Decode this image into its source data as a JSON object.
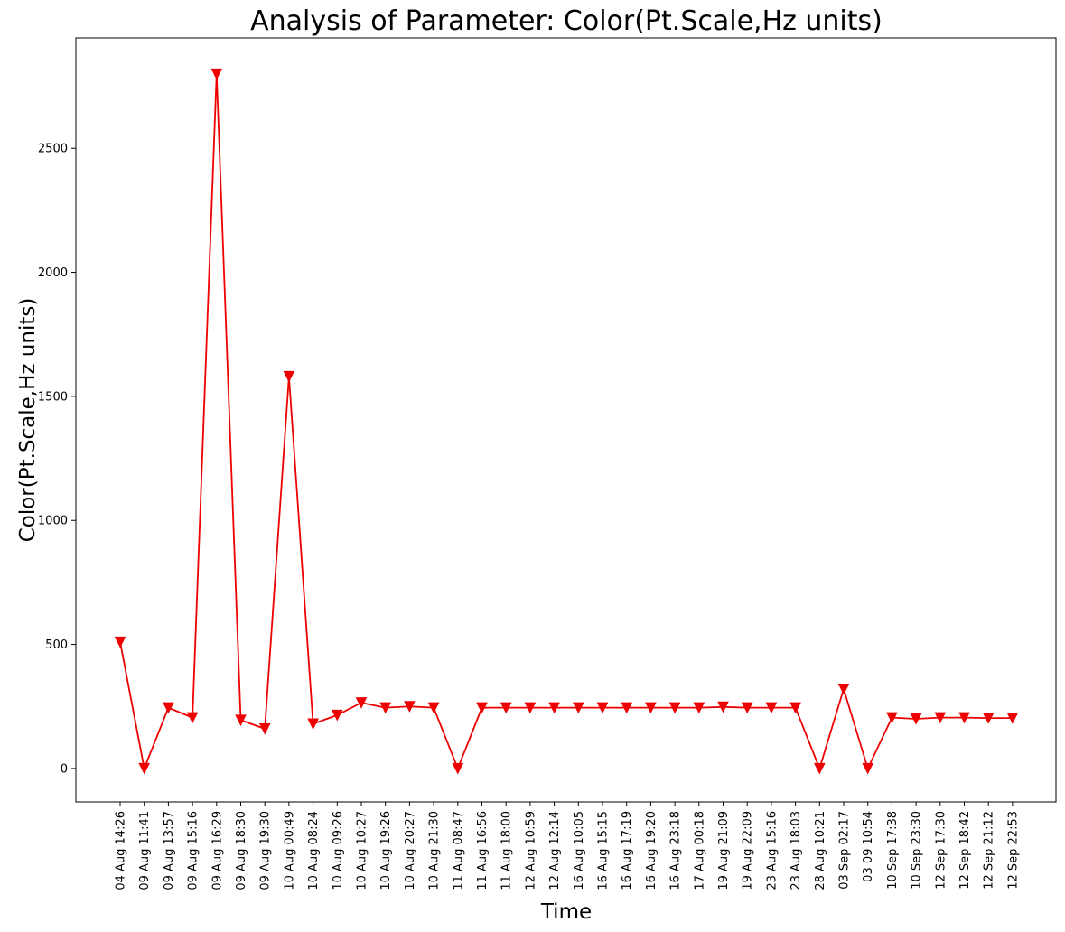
{
  "chart_data": {
    "type": "line",
    "title": "Analysis of Parameter: Color(Pt.Scale,Hz units)",
    "xlabel": "Time",
    "ylabel": "Color(Pt.Scale,Hz units)",
    "ylim": [
      -135,
      2945
    ],
    "yticks": [
      0,
      500,
      1000,
      1500,
      2000,
      2500
    ],
    "grid": false,
    "color": "#ee0000",
    "marker": "triangle-down",
    "categories": [
      "04 Aug 14:26",
      "09 Aug 11:41",
      "09 Aug 13:57",
      "09 Aug 15:16",
      "09 Aug 16:29",
      "09 Aug 18:30",
      "09 Aug 19:30",
      "10 Aug 00:49",
      "10 Aug 08:24",
      "10 Aug 09:26",
      "10 Aug 10:27",
      "10 Aug 19:26",
      "10 Aug 20:27",
      "10 Aug 21:30",
      "11 Aug 08:47",
      "11 Aug 16:56",
      "11 Aug 18:00",
      "12 Aug 10:59",
      "12 Aug 12:14",
      "16 Aug 10:05",
      "16 Aug 15:15",
      "16 Aug 17:19",
      "16 Aug 19:20",
      "16 Aug 23:18",
      "17 Aug 00:18",
      "19 Aug 21:09",
      "19 Aug 22:09",
      "23 Aug 15:16",
      "23 Aug 18:03",
      "28 Aug 10:21",
      "03 Sep 02:17",
      "03 09 10:54",
      "10 Sep 17:38",
      "10 Sep 23:30",
      "12 Sep 17:30",
      "12 Sep 18:42",
      "12 Sep 21:12",
      "12 Sep 22:53"
    ],
    "values": [
      510,
      0,
      245,
      205,
      2800,
      195,
      160,
      1580,
      180,
      215,
      265,
      245,
      250,
      245,
      0,
      245,
      245,
      245,
      245,
      245,
      245,
      245,
      245,
      245,
      245,
      248,
      245,
      245,
      245,
      0,
      320,
      0,
      205,
      200,
      205,
      205,
      203,
      203
    ]
  }
}
